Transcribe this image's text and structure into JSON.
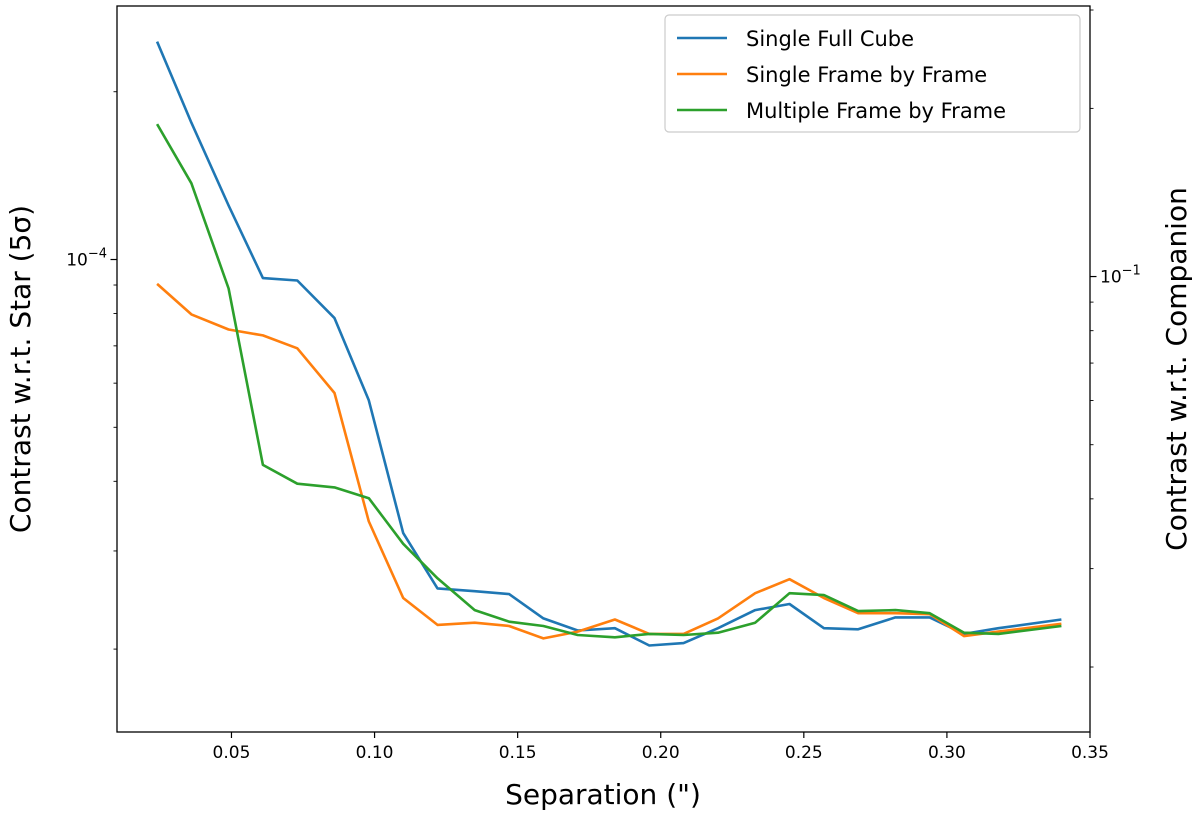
{
  "chart_data": {
    "type": "line",
    "xlabel": "Separation (\")",
    "ylabel": "Contrast w.r.t. Star (5σ)",
    "ylabel_right": "Contrast w.r.t. Companion",
    "x_ticks": [
      0.05,
      0.1,
      0.15,
      0.2,
      0.25,
      0.3,
      0.35
    ],
    "x_tick_labels": [
      "0.05",
      "0.10",
      "0.15",
      "0.20",
      "0.25",
      "0.30",
      "0.35"
    ],
    "xlim": [
      0.01,
      0.35
    ],
    "y_scale": "log",
    "ylim": [
      1.42e-05,
      0.000285
    ],
    "y_tick": {
      "value": 0.0001,
      "base": "10",
      "exponent": "−4"
    },
    "y_right_scale": "log",
    "ylim_right": [
      0.0153,
      0.305
    ],
    "y_right_tick": {
      "value": 0.1,
      "base": "10",
      "exponent": "−1"
    },
    "legend": {
      "placement": "upper-right"
    },
    "grid": false,
    "x": [
      0.024,
      0.036,
      0.049,
      0.061,
      0.073,
      0.086,
      0.098,
      0.11,
      0.122,
      0.135,
      0.147,
      0.159,
      0.171,
      0.184,
      0.196,
      0.208,
      0.22,
      0.233,
      0.245,
      0.257,
      0.269,
      0.282,
      0.294,
      0.306,
      0.318,
      0.34
    ],
    "series": [
      {
        "name": "Single Full Cube",
        "color": "#1f77b4",
        "values": [
          0.000246,
          0.000176,
          0.000125,
          9.26e-05,
          9.17e-05,
          7.85e-05,
          5.59e-05,
          3.23e-05,
          2.57e-05,
          2.54e-05,
          2.51e-05,
          2.27e-05,
          2.16e-05,
          2.18e-05,
          2.03e-05,
          2.05e-05,
          2.18e-05,
          2.35e-05,
          2.41e-05,
          2.18e-05,
          2.17e-05,
          2.28e-05,
          2.28e-05,
          2.13e-05,
          2.18e-05,
          2.26e-05
        ]
      },
      {
        "name": "Single Frame by Frame",
        "color": "#ff7f0e",
        "values": [
          9.04e-05,
          7.97e-05,
          7.49e-05,
          7.31e-05,
          6.93e-05,
          5.76e-05,
          3.39e-05,
          2.47e-05,
          2.21e-05,
          2.23e-05,
          2.2e-05,
          2.09e-05,
          2.15e-05,
          2.26e-05,
          2.13e-05,
          2.13e-05,
          2.27e-05,
          2.52e-05,
          2.67e-05,
          2.47e-05,
          2.32e-05,
          2.32e-05,
          2.31e-05,
          2.11e-05,
          2.15e-05,
          2.22e-05
        ]
      },
      {
        "name": "Multiple Frame by Frame",
        "color": "#2ca02c",
        "values": [
          0.000175,
          0.000137,
          8.87e-05,
          4.28e-05,
          3.96e-05,
          3.9e-05,
          3.73e-05,
          3.09e-05,
          2.68e-05,
          2.35e-05,
          2.24e-05,
          2.2e-05,
          2.12e-05,
          2.1e-05,
          2.13e-05,
          2.12e-05,
          2.14e-05,
          2.23e-05,
          2.52e-05,
          2.5e-05,
          2.34e-05,
          2.35e-05,
          2.32e-05,
          2.14e-05,
          2.13e-05,
          2.2e-05
        ]
      }
    ]
  }
}
